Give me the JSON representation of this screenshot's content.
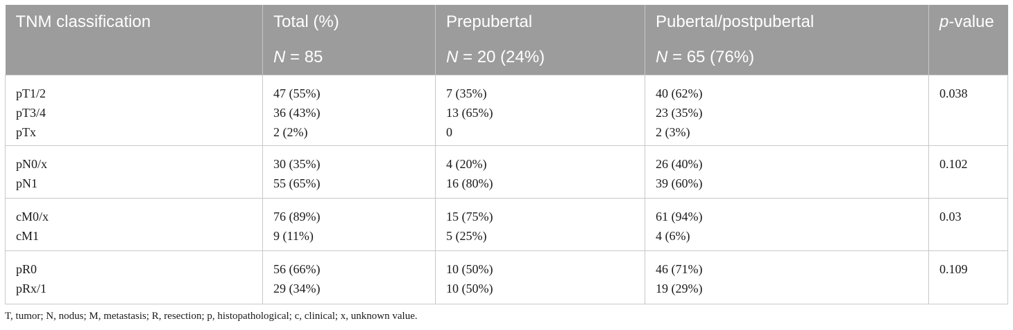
{
  "table": {
    "header": {
      "col1": "TNM classification",
      "col2": "Total (%)",
      "col3": "Prepubertal",
      "col4": "Pubertal/postpubertal",
      "col5_italic": "p",
      "col5_rest": "-value",
      "n_symbol": "N",
      "n_total": " = 85",
      "n_prepubertal": " = 20 (24%)",
      "n_pubertal": " = 65 (76%)"
    },
    "groups": [
      {
        "labels": [
          "pT1/2",
          "pT3/4",
          "pTx"
        ],
        "total": [
          "47 (55%)",
          "36 (43%)",
          "2 (2%)"
        ],
        "prepubertal": [
          "7 (35%)",
          "13 (65%)",
          "0"
        ],
        "pubertal": [
          "40 (62%)",
          "23 (35%)",
          "2 (3%)"
        ],
        "p_value": "0.038"
      },
      {
        "labels": [
          "pN0/x",
          "pN1"
        ],
        "total": [
          "30 (35%)",
          "55 (65%)"
        ],
        "prepubertal": [
          "4 (20%)",
          "16 (80%)"
        ],
        "pubertal": [
          "26 (40%)",
          "39 (60%)"
        ],
        "p_value": "0.102"
      },
      {
        "labels": [
          "cM0/x",
          "cM1"
        ],
        "total": [
          "76 (89%)",
          "9 (11%)"
        ],
        "prepubertal": [
          "15 (75%)",
          "5 (25%)"
        ],
        "pubertal": [
          "61 (94%)",
          "4 (6%)"
        ],
        "p_value": "0.03"
      },
      {
        "labels": [
          "pR0",
          "pRx/1"
        ],
        "total": [
          "56 (66%)",
          "29 (34%)"
        ],
        "prepubertal": [
          "10 (50%)",
          "10 (50%)"
        ],
        "pubertal": [
          "46 (71%)",
          "19 (29%)"
        ],
        "p_value": "0.109"
      }
    ]
  },
  "footnote": "T, tumor; N, nodus; M, metastasis; R, resection; p, histopathological; c, clinical; x, unknown value."
}
